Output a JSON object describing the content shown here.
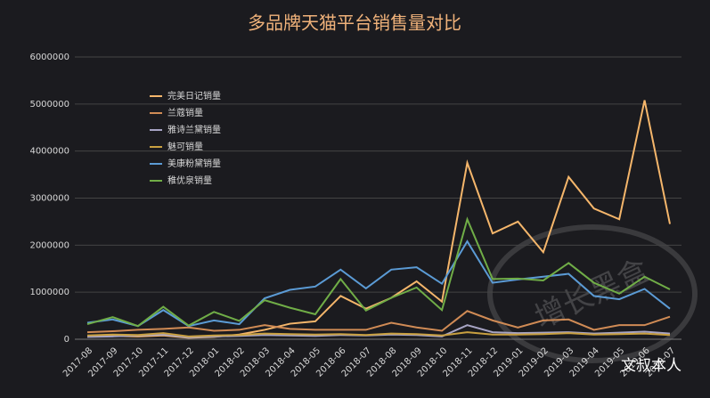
{
  "chart_data": {
    "type": "line",
    "title": "多品牌天猫平台销售量对比",
    "categories": [
      "2017-08",
      "2017-09",
      "2017-10",
      "2017-11",
      "2017-12",
      "2018-01",
      "2018-02",
      "2018-03",
      "2018-04",
      "2018-05",
      "2018-06",
      "2018-07",
      "2018-08",
      "2018-09",
      "2018-10",
      "2018-11",
      "2018-12",
      "2019-01",
      "2019-02",
      "2019-03",
      "2019-04",
      "2019-05",
      "2019-06",
      "2019-07"
    ],
    "series": [
      {
        "name": "完美日记销量",
        "color": "#f5b66b",
        "values": [
          60000,
          70000,
          60000,
          80000,
          30000,
          50000,
          100000,
          200000,
          330000,
          380000,
          920000,
          650000,
          880000,
          1230000,
          800000,
          3750000,
          2250000,
          2500000,
          1850000,
          3450000,
          2780000,
          2550000,
          5080000,
          2450000
        ]
      },
      {
        "name": "兰蔻销量",
        "color": "#d08b55",
        "values": [
          150000,
          170000,
          200000,
          220000,
          250000,
          180000,
          200000,
          300000,
          220000,
          200000,
          200000,
          200000,
          350000,
          250000,
          180000,
          600000,
          400000,
          250000,
          400000,
          420000,
          200000,
          300000,
          300000,
          480000
        ]
      },
      {
        "name": "雅诗兰黛销量",
        "color": "#a7a4c4",
        "values": [
          50000,
          60000,
          80000,
          100000,
          40000,
          60000,
          70000,
          90000,
          80000,
          70000,
          90000,
          80000,
          100000,
          90000,
          60000,
          300000,
          150000,
          130000,
          140000,
          150000,
          120000,
          140000,
          160000,
          120000
        ]
      },
      {
        "name": "魅可销量",
        "color": "#c9a040",
        "values": [
          80000,
          100000,
          90000,
          130000,
          60000,
          80000,
          90000,
          120000,
          110000,
          100000,
          110000,
          90000,
          120000,
          110000,
          80000,
          150000,
          100000,
          100000,
          110000,
          130000,
          100000,
          110000,
          120000,
          90000
        ]
      },
      {
        "name": "美康粉黛销量",
        "color": "#5b9bd5",
        "values": [
          350000,
          420000,
          280000,
          620000,
          280000,
          400000,
          320000,
          870000,
          1050000,
          1120000,
          1480000,
          1080000,
          1480000,
          1530000,
          1180000,
          2080000,
          1200000,
          1270000,
          1330000,
          1390000,
          920000,
          850000,
          1070000,
          650000
        ]
      },
      {
        "name": "稚优泉销量",
        "color": "#70ad47",
        "values": [
          320000,
          470000,
          280000,
          690000,
          290000,
          580000,
          390000,
          830000,
          670000,
          530000,
          1280000,
          610000,
          880000,
          1100000,
          620000,
          2550000,
          1280000,
          1290000,
          1250000,
          1620000,
          1200000,
          970000,
          1330000,
          1060000
        ]
      }
    ],
    "ylim": [
      0,
      6000000
    ],
    "yticks": [
      0,
      1000000,
      2000000,
      3000000,
      4000000,
      5000000,
      6000000
    ],
    "grid": true,
    "legend": "upper-left",
    "watermark": "文叔本人",
    "stamp": "增长黑盒"
  }
}
